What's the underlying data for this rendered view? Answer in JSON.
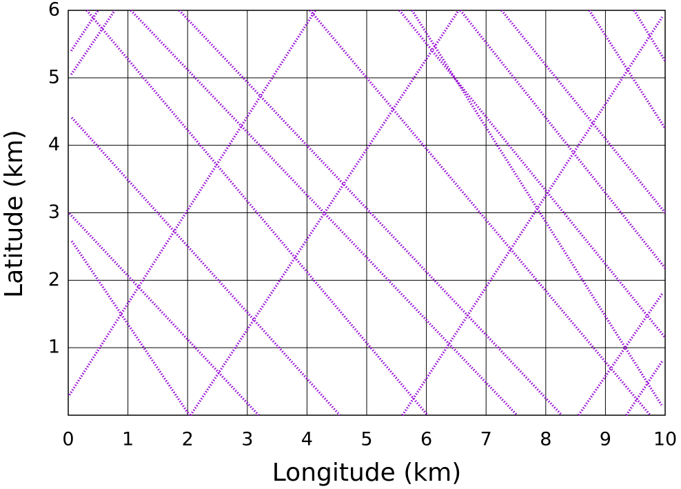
{
  "chart_data": {
    "type": "line",
    "x_label": "Longitude (km)",
    "y_label": "Latitude (km)",
    "xlim": [
      0,
      10
    ],
    "ylim": [
      0,
      6
    ],
    "xticks": [
      0,
      1,
      2,
      3,
      4,
      5,
      6,
      7,
      8,
      9,
      10
    ],
    "yticks": [
      1,
      2,
      3,
      4,
      5,
      6
    ],
    "grid": true,
    "line_style": "dotted",
    "series": [
      {
        "color": "#9400d3",
        "x": [
          0.06,
          4.55
        ],
        "values": [
          4.41,
          0
        ]
      },
      {
        "color": "#9400d3",
        "x": [
          0.02,
          3.19
        ],
        "values": [
          2.99,
          0
        ]
      },
      {
        "color": "#9400d3",
        "x": [
          0.06,
          2.03
        ],
        "values": [
          2.58,
          0
        ]
      },
      {
        "color": "#9400d3",
        "x": [
          0.31,
          6.02
        ],
        "values": [
          6,
          0
        ]
      },
      {
        "color": "#9400d3",
        "x": [
          1.05,
          7.52
        ],
        "values": [
          6,
          0
        ]
      },
      {
        "color": "#9400d3",
        "x": [
          1.86,
          8.27
        ],
        "values": [
          6,
          0
        ]
      },
      {
        "color": "#9400d3",
        "x": [
          4.05,
          9.75
        ],
        "values": [
          6,
          0
        ]
      },
      {
        "color": "#9400d3",
        "x": [
          5.55,
          10
        ],
        "values": [
          6,
          1.15
        ]
      },
      {
        "color": "#9400d3",
        "x": [
          5.76,
          9.94
        ],
        "values": [
          6,
          0.15
        ]
      },
      {
        "color": "#9400d3",
        "x": [
          6.57,
          10
        ],
        "values": [
          6,
          2.18
        ]
      },
      {
        "color": "#9400d3",
        "x": [
          7.26,
          10
        ],
        "values": [
          6,
          3.0
        ]
      },
      {
        "color": "#9400d3",
        "x": [
          8.73,
          10
        ],
        "values": [
          6,
          4.25
        ]
      },
      {
        "color": "#9400d3",
        "x": [
          9.48,
          10
        ],
        "values": [
          6,
          5.25
        ]
      },
      {
        "color": "#9400d3",
        "x": [
          0.02,
          4.14
        ],
        "values": [
          0.3,
          6
        ]
      },
      {
        "color": "#9400d3",
        "x": [
          0.05,
          0.78
        ],
        "values": [
          5.05,
          6
        ]
      },
      {
        "color": "#9400d3",
        "x": [
          0.05,
          0.5
        ],
        "values": [
          5.4,
          6
        ]
      },
      {
        "color": "#9400d3",
        "x": [
          2.05,
          6.54
        ],
        "values": [
          0,
          6
        ]
      },
      {
        "color": "#9400d3",
        "x": [
          5.6,
          9.95
        ],
        "values": [
          0,
          5.9
        ]
      },
      {
        "color": "#9400d3",
        "x": [
          8.55,
          9.95
        ],
        "values": [
          0,
          1.8
        ]
      },
      {
        "color": "#9400d3",
        "x": [
          9.35,
          9.95
        ],
        "values": [
          0,
          0.8
        ]
      }
    ]
  }
}
